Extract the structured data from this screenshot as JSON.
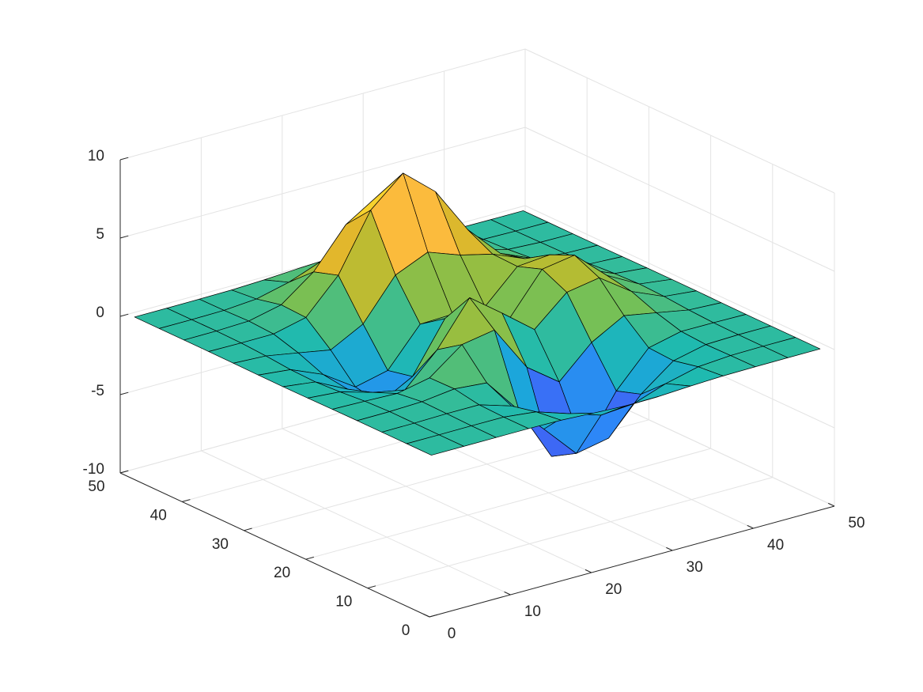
{
  "chart_data": {
    "type": "surface",
    "x": [
      1,
      5,
      9,
      13,
      17,
      21,
      25,
      29,
      33,
      37,
      41,
      45,
      49
    ],
    "y": [
      1,
      5,
      9,
      13,
      17,
      21,
      25,
      29,
      33,
      37,
      41,
      45,
      49
    ],
    "z": [
      [
        0.0,
        0.0,
        0.0,
        0.0,
        -0.03,
        -0.14,
        -0.24,
        -0.22,
        -0.11,
        -0.03,
        -0.01,
        0.0,
        0.0
      ],
      [
        0.0,
        0.0,
        0.01,
        0.0,
        -0.23,
        -0.91,
        -1.57,
        -1.41,
        -0.69,
        -0.18,
        -0.03,
        0.0,
        0.0
      ],
      [
        0.0,
        0.01,
        0.05,
        0.05,
        -0.59,
        -2.63,
        -4.75,
        -4.34,
        -2.1,
        -0.53,
        -0.06,
        0.0,
        0.0
      ],
      [
        0.0,
        0.01,
        0.08,
        0.33,
        0.15,
        -2.19,
        -5.68,
        -5.76,
        -2.63,
        -0.44,
        0.04,
        0.03,
        0.0
      ],
      [
        -0.01,
        -0.06,
        -0.13,
        0.3,
        1.86,
        2.22,
        -0.72,
        -2.22,
        -0.27,
        0.88,
        0.5,
        0.11,
        0.01
      ],
      [
        -0.03,
        -0.2,
        -0.8,
        -1.21,
        0.8,
        3.55,
        2.0,
        0.39,
        2.2,
        2.56,
        1.12,
        0.24,
        0.03
      ],
      [
        -0.04,
        -0.3,
        -1.33,
        -2.77,
        -1.65,
        1.48,
        0.98,
        0.38,
        2.94,
        3.27,
        1.41,
        0.3,
        0.03
      ],
      [
        -0.03,
        -0.25,
        -1.12,
        -2.49,
        -2.0,
        0.39,
        0.46,
        0.38,
        2.38,
        2.56,
        1.09,
        0.23,
        0.03
      ],
      [
        -0.01,
        -0.11,
        -0.48,
        -0.86,
        0.23,
        2.79,
        3.69,
        2.94,
        2.43,
        1.58,
        0.58,
        0.11,
        0.01
      ],
      [
        0.0,
        -0.02,
        -0.01,
        0.48,
        2.61,
        6.2,
        8.0,
        6.25,
        3.25,
        1.18,
        0.29,
        0.05,
        0.0
      ],
      [
        0.0,
        0.01,
        0.08,
        0.55,
        2.09,
        4.55,
        5.85,
        4.56,
        2.21,
        0.68,
        0.13,
        0.02,
        0.0
      ],
      [
        0.0,
        0.0,
        0.03,
        0.19,
        0.69,
        1.47,
        1.88,
        1.47,
        0.7,
        0.21,
        0.04,
        0.0,
        0.0
      ],
      [
        0.0,
        0.0,
        0.01,
        0.03,
        0.11,
        0.23,
        0.3,
        0.23,
        0.11,
        0.03,
        0.01,
        0.0,
        0.0
      ]
    ],
    "xlim": [
      0,
      50
    ],
    "xticks": [
      0,
      10,
      20,
      30,
      40,
      50
    ],
    "ylim": [
      0,
      50
    ],
    "yticks": [
      0,
      10,
      20,
      30,
      40,
      50
    ],
    "zlim": [
      -10,
      10
    ],
    "zticks": [
      -10,
      -5,
      0,
      5,
      10
    ],
    "grid": true,
    "edge_color": "#000000",
    "colormap": [
      "#3e26a8",
      "#4852f4",
      "#2d87f7",
      "#1ca5dc",
      "#1fbab0",
      "#6cc05c",
      "#aabd35",
      "#e2b72c",
      "#fcbb3d",
      "#f5de26",
      "#f9fb0e"
    ]
  }
}
